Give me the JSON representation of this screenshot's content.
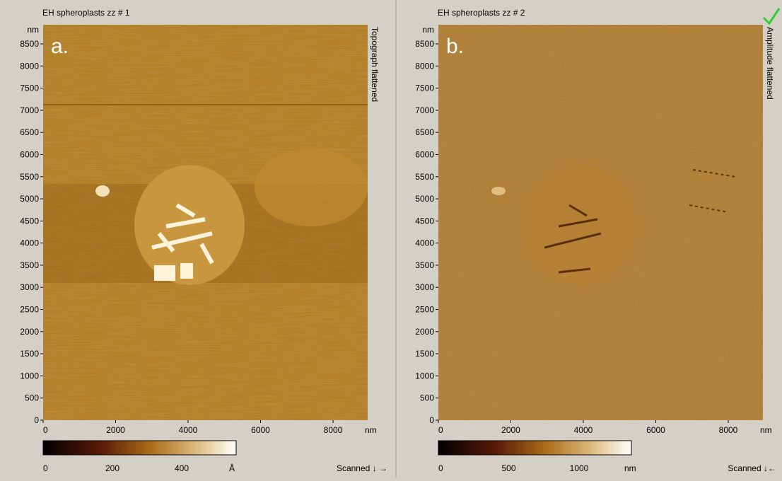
{
  "panels": [
    {
      "title": "EH spheroplasts zz # 1",
      "label": "a.",
      "side_label": "Topograph flattened",
      "y_unit": "nm",
      "yticks": [
        0,
        500,
        1000,
        1500,
        2000,
        2500,
        3000,
        3500,
        4000,
        4500,
        5000,
        5500,
        6000,
        6500,
        7000,
        7500,
        8000,
        8500
      ],
      "x_unit": "nm",
      "xticks": [
        0,
        2000,
        4000,
        6000,
        8000
      ],
      "colorbar": {
        "ticks": [
          0,
          200,
          400
        ],
        "unit": "Å"
      },
      "scan": "Scanned ↓ →"
    },
    {
      "title": "EH spheroplasts zz # 2",
      "label": "b.",
      "side_label": "Amplitude flattened",
      "y_unit": "nm",
      "yticks": [
        0,
        500,
        1000,
        1500,
        2000,
        2500,
        3000,
        3500,
        4000,
        4500,
        5000,
        5500,
        6000,
        6500,
        7000,
        7500,
        8000,
        8500
      ],
      "x_unit": "nm",
      "xticks": [
        0,
        2000,
        4000,
        6000,
        8000
      ],
      "colorbar": {
        "ticks": [
          0,
          500,
          1000
        ],
        "unit": "nm"
      },
      "scan": "Scanned ↓←"
    }
  ]
}
